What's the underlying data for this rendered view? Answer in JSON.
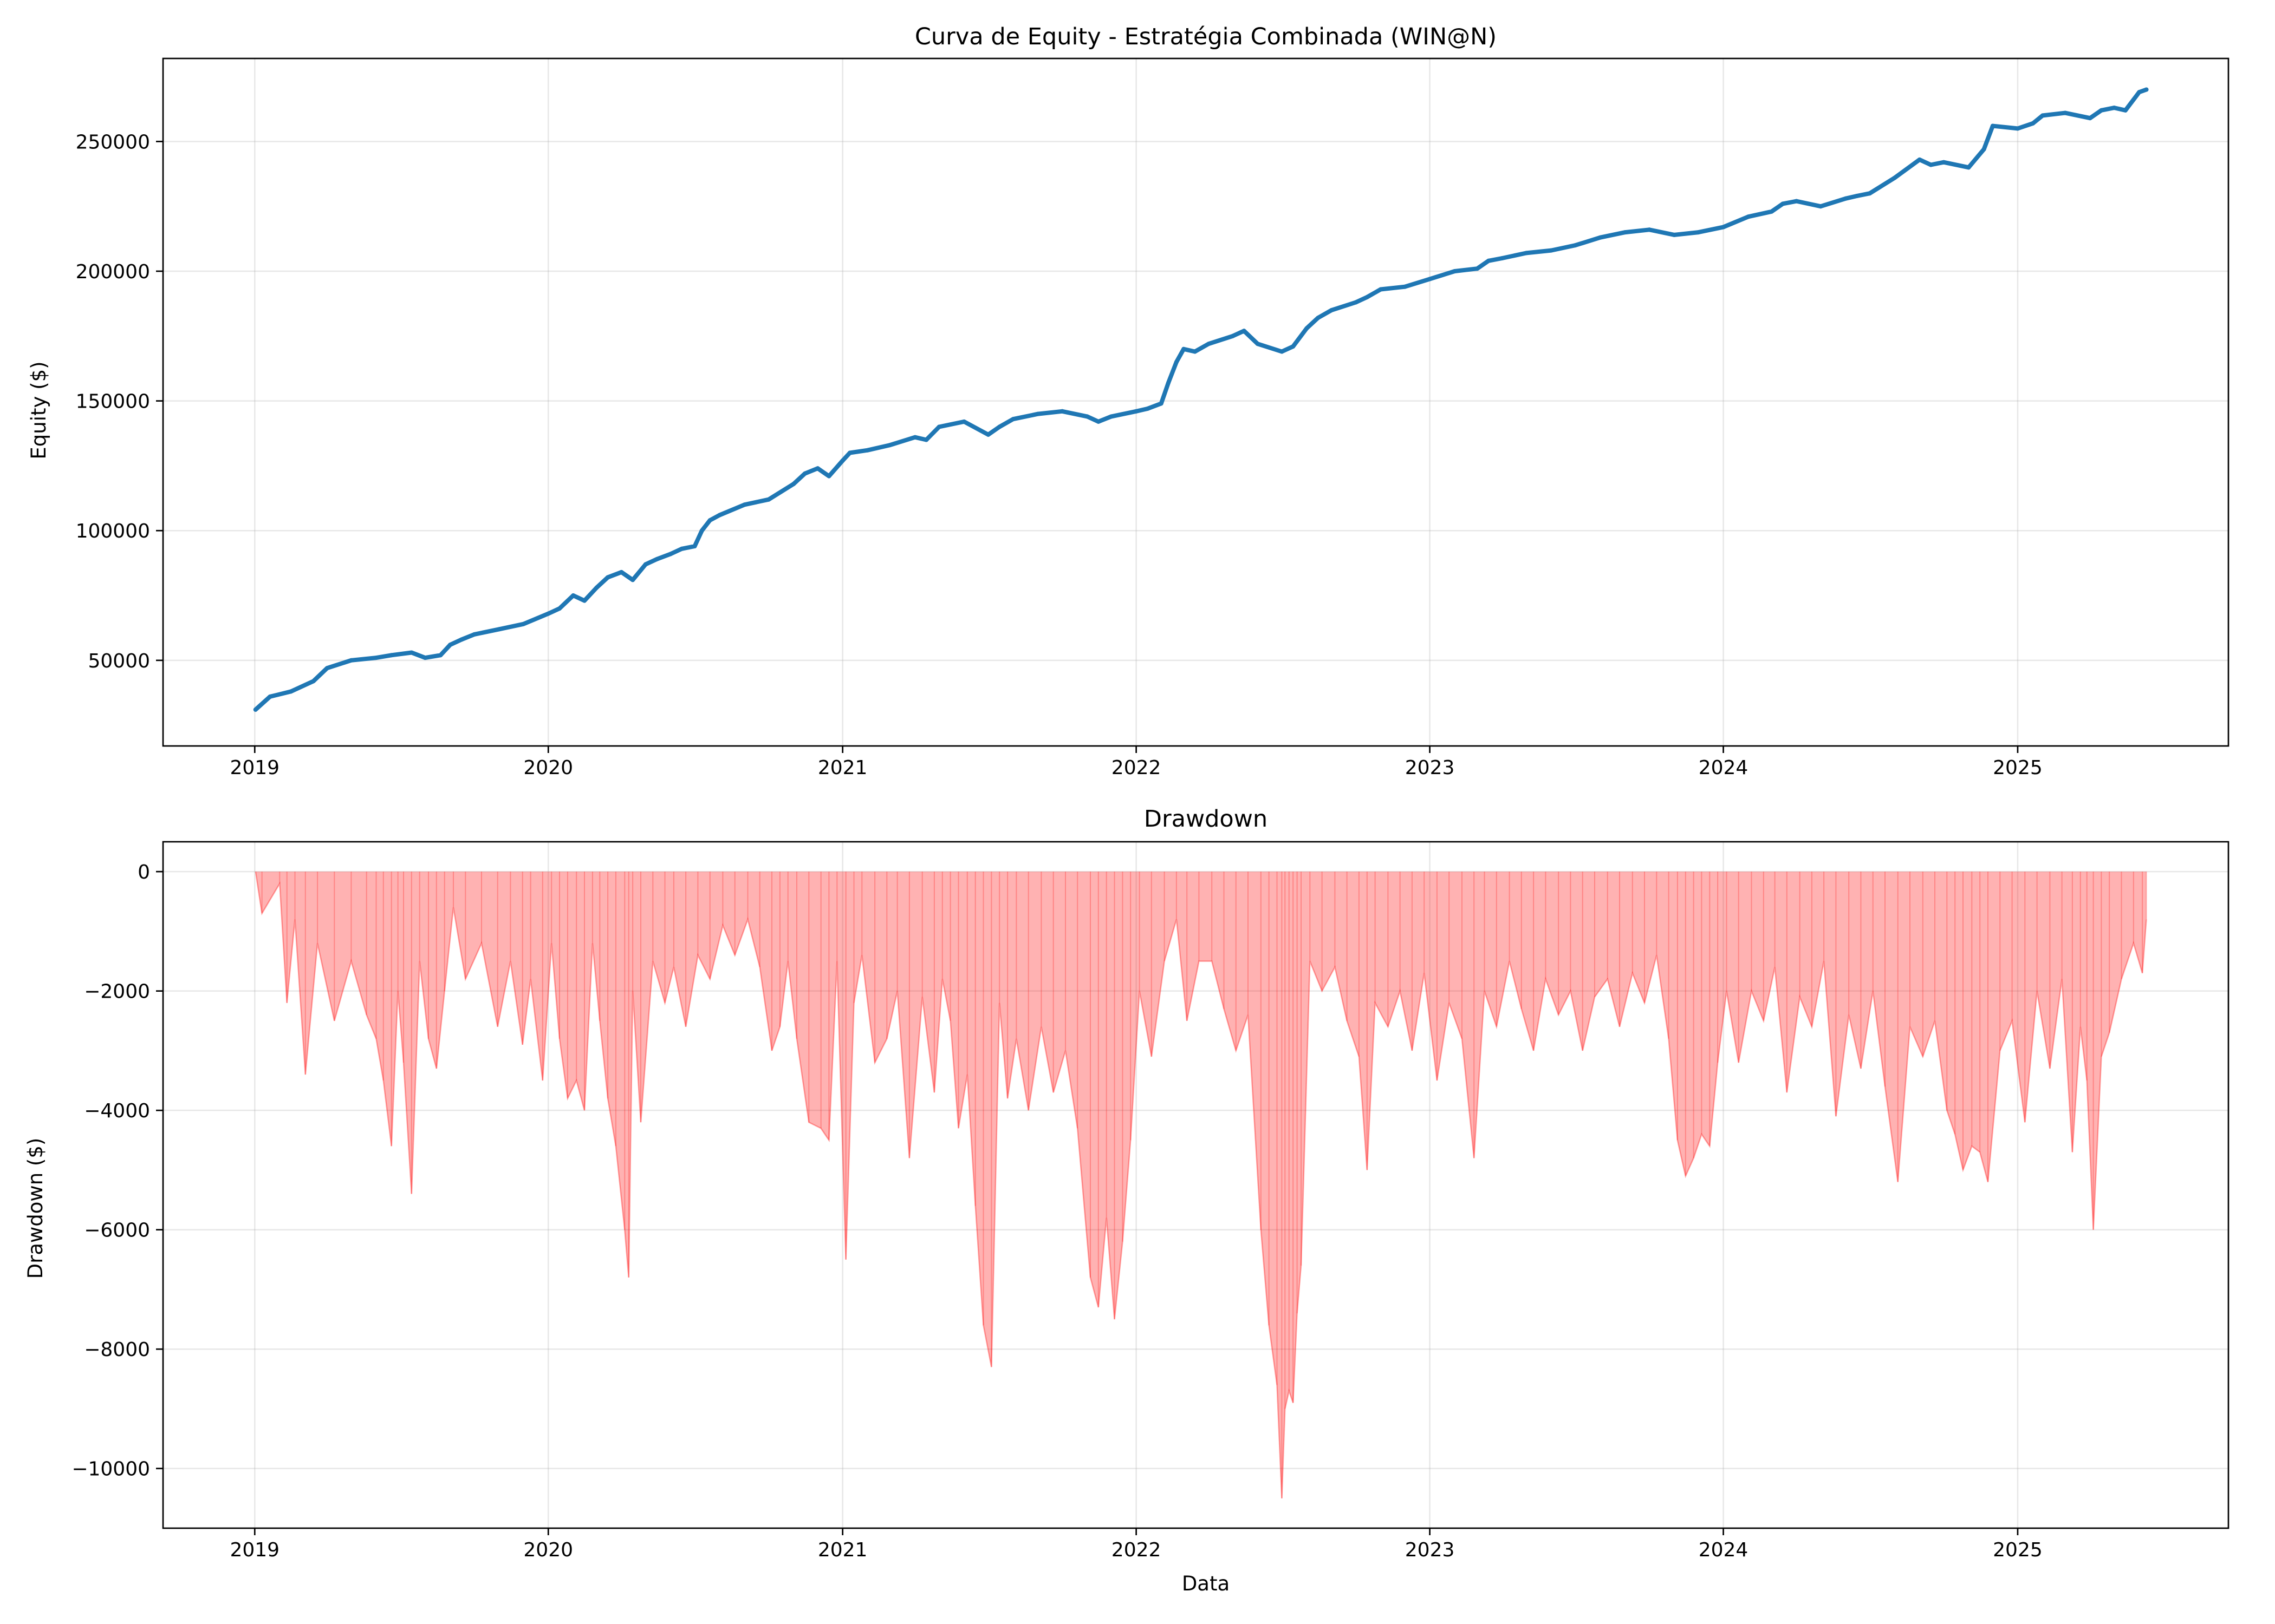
{
  "chart_data": [
    {
      "type": "line",
      "title": "Curva de Equity - Estratégia Combinada (WIN@N)",
      "xlabel": "",
      "ylabel": "Equity ($)",
      "xlim": [
        "2018-09-09",
        "2025-09-20"
      ],
      "ylim": [
        17000,
        282000
      ],
      "x_ticks": [
        "2019",
        "2020",
        "2021",
        "2022",
        "2023",
        "2024",
        "2025"
      ],
      "y_ticks": [
        "50000",
        "100000",
        "150000",
        "200000",
        "250000"
      ],
      "grid": true,
      "series": [
        {
          "color": "#1f77b4",
          "x": [
            "2019-01-02",
            "2019-01-20",
            "2019-02-15",
            "2019-03-15",
            "2019-04-01",
            "2019-05-01",
            "2019-06-01",
            "2019-06-20",
            "2019-07-15",
            "2019-08-01",
            "2019-08-20",
            "2019-09-01",
            "2019-09-15",
            "2019-10-01",
            "2019-11-01",
            "2019-12-01",
            "2020-01-01",
            "2020-01-15",
            "2020-02-01",
            "2020-02-15",
            "2020-03-01",
            "2020-03-15",
            "2020-04-01",
            "2020-04-15",
            "2020-05-01",
            "2020-05-15",
            "2020-06-01",
            "2020-06-15",
            "2020-07-01",
            "2020-07-10",
            "2020-07-20",
            "2020-08-01",
            "2020-09-01",
            "2020-10-01",
            "2020-11-01",
            "2020-11-15",
            "2020-12-01",
            "2020-12-15",
            "2021-01-01",
            "2021-01-10",
            "2021-02-01",
            "2021-03-01",
            "2021-04-01",
            "2021-04-15",
            "2021-05-01",
            "2021-06-01",
            "2021-07-01",
            "2021-07-15",
            "2021-08-01",
            "2021-09-01",
            "2021-10-01",
            "2021-11-01",
            "2021-11-15",
            "2021-12-01",
            "2022-01-01",
            "2022-01-15",
            "2022-02-01",
            "2022-02-10",
            "2022-02-20",
            "2022-03-01",
            "2022-03-15",
            "2022-04-01",
            "2022-05-01",
            "2022-05-15",
            "2022-06-01",
            "2022-07-01",
            "2022-07-15",
            "2022-08-01",
            "2022-08-15",
            "2022-09-01",
            "2022-10-01",
            "2022-10-15",
            "2022-11-01",
            "2022-12-01",
            "2023-01-01",
            "2023-02-01",
            "2023-03-01",
            "2023-03-15",
            "2023-04-01",
            "2023-05-01",
            "2023-06-01",
            "2023-07-01",
            "2023-08-01",
            "2023-09-01",
            "2023-10-01",
            "2023-11-01",
            "2023-12-01",
            "2024-01-01",
            "2024-02-01",
            "2024-03-01",
            "2024-03-15",
            "2024-04-01",
            "2024-05-01",
            "2024-06-01",
            "2024-06-15",
            "2024-07-01",
            "2024-08-01",
            "2024-09-01",
            "2024-09-15",
            "2024-10-01",
            "2024-11-01",
            "2024-11-20",
            "2024-12-01",
            "2025-01-01",
            "2025-01-20",
            "2025-02-01",
            "2025-03-01",
            "2025-04-01",
            "2025-04-15",
            "2025-05-01",
            "2025-05-15",
            "2025-06-01",
            "2025-06-10"
          ],
          "y": [
            31000,
            36000,
            38000,
            42000,
            47000,
            50000,
            51000,
            52000,
            53000,
            51000,
            52000,
            56000,
            58000,
            60000,
            62000,
            64000,
            68000,
            70000,
            75000,
            73000,
            78000,
            82000,
            84000,
            81000,
            87000,
            89000,
            91000,
            93000,
            94000,
            100000,
            104000,
            106000,
            110000,
            112000,
            118000,
            122000,
            124000,
            121000,
            127000,
            130000,
            131000,
            133000,
            136000,
            135000,
            140000,
            142000,
            137000,
            140000,
            143000,
            145000,
            146000,
            144000,
            142000,
            144000,
            146000,
            147000,
            149000,
            157000,
            165000,
            170000,
            169000,
            172000,
            175000,
            177000,
            172000,
            169000,
            171000,
            178000,
            182000,
            185000,
            188000,
            190000,
            193000,
            194000,
            197000,
            200000,
            201000,
            204000,
            205000,
            207000,
            208000,
            210000,
            213000,
            215000,
            216000,
            214000,
            215000,
            217000,
            221000,
            223000,
            226000,
            227000,
            225000,
            228000,
            229000,
            230000,
            236000,
            243000,
            241000,
            242000,
            240000,
            247000,
            256000,
            255000,
            257000,
            260000,
            261000,
            259000,
            262000,
            263000,
            262000,
            269000,
            270000
          ]
        }
      ]
    },
    {
      "type": "area",
      "title": "Drawdown",
      "xlabel": "Data",
      "ylabel": "Drawdown ($)",
      "xlim": [
        "2018-09-09",
        "2025-09-20"
      ],
      "ylim": [
        -11000,
        500
      ],
      "x_ticks": [
        "2019",
        "2020",
        "2021",
        "2022",
        "2023",
        "2024",
        "2025"
      ],
      "y_ticks": [
        "0",
        "−2000",
        "−4000",
        "−6000",
        "−8000",
        "−10000"
      ],
      "grid": true,
      "series": [
        {
          "color": "#ff0000",
          "x": [
            "2019-01-02",
            "2019-01-10",
            "2019-02-01",
            "2019-02-10",
            "2019-02-20",
            "2019-03-05",
            "2019-03-20",
            "2019-04-10",
            "2019-05-01",
            "2019-05-20",
            "2019-06-01",
            "2019-06-10",
            "2019-06-20",
            "2019-06-28",
            "2019-07-05",
            "2019-07-15",
            "2019-07-25",
            "2019-08-05",
            "2019-08-15",
            "2019-08-25",
            "2019-09-05",
            "2019-09-20",
            "2019-10-10",
            "2019-10-30",
            "2019-11-15",
            "2019-11-30",
            "2019-12-10",
            "2019-12-25",
            "2020-01-05",
            "2020-01-15",
            "2020-01-25",
            "2020-02-05",
            "2020-02-15",
            "2020-02-25",
            "2020-03-05",
            "2020-03-15",
            "2020-03-25",
            "2020-04-05",
            "2020-04-10",
            "2020-04-15",
            "2020-04-25",
            "2020-05-10",
            "2020-05-25",
            "2020-06-05",
            "2020-06-20",
            "2020-07-05",
            "2020-07-20",
            "2020-08-05",
            "2020-08-20",
            "2020-09-05",
            "2020-09-20",
            "2020-10-05",
            "2020-10-15",
            "2020-10-25",
            "2020-11-05",
            "2020-11-20",
            "2020-12-05",
            "2020-12-15",
            "2020-12-25",
            "2021-01-05",
            "2021-01-15",
            "2021-01-25",
            "2021-02-10",
            "2021-02-25",
            "2021-03-10",
            "2021-03-25",
            "2021-04-10",
            "2021-04-25",
            "2021-05-05",
            "2021-05-15",
            "2021-05-25",
            "2021-06-05",
            "2021-06-15",
            "2021-06-25",
            "2021-07-05",
            "2021-07-15",
            "2021-07-25",
            "2021-08-05",
            "2021-08-20",
            "2021-09-05",
            "2021-09-20",
            "2021-10-05",
            "2021-10-20",
            "2021-11-05",
            "2021-11-15",
            "2021-11-25",
            "2021-12-05",
            "2021-12-15",
            "2021-12-25",
            "2022-01-05",
            "2022-01-20",
            "2022-02-05",
            "2022-02-20",
            "2022-03-05",
            "2022-03-20",
            "2022-04-05",
            "2022-04-20",
            "2022-05-05",
            "2022-05-20",
            "2022-06-05",
            "2022-06-15",
            "2022-06-25",
            "2022-07-01",
            "2022-07-05",
            "2022-07-10",
            "2022-07-15",
            "2022-07-20",
            "2022-07-25",
            "2022-08-05",
            "2022-08-20",
            "2022-09-05",
            "2022-09-20",
            "2022-10-05",
            "2022-10-15",
            "2022-10-25",
            "2022-11-10",
            "2022-11-25",
            "2022-12-10",
            "2022-12-25",
            "2023-01-10",
            "2023-01-25",
            "2023-02-10",
            "2023-02-25",
            "2023-03-10",
            "2023-03-25",
            "2023-04-10",
            "2023-04-25",
            "2023-05-10",
            "2023-05-25",
            "2023-06-10",
            "2023-06-25",
            "2023-07-10",
            "2023-07-25",
            "2023-08-10",
            "2023-08-25",
            "2023-09-10",
            "2023-09-25",
            "2023-10-10",
            "2023-10-25",
            "2023-11-05",
            "2023-11-15",
            "2023-11-25",
            "2023-12-05",
            "2023-12-15",
            "2023-12-25",
            "2024-01-05",
            "2024-01-20",
            "2024-02-05",
            "2024-02-20",
            "2024-03-05",
            "2024-03-20",
            "2024-04-05",
            "2024-04-20",
            "2024-05-05",
            "2024-05-20",
            "2024-06-05",
            "2024-06-20",
            "2024-07-05",
            "2024-07-20",
            "2024-08-05",
            "2024-08-20",
            "2024-09-05",
            "2024-09-20",
            "2024-10-05",
            "2024-10-15",
            "2024-10-25",
            "2024-11-05",
            "2024-11-15",
            "2024-11-25",
            "2024-12-10",
            "2024-12-25",
            "2025-01-10",
            "2025-01-25",
            "2025-02-10",
            "2025-02-25",
            "2025-03-10",
            "2025-03-20",
            "2025-03-28",
            "2025-04-05",
            "2025-04-15",
            "2025-04-25",
            "2025-05-10",
            "2025-05-25",
            "2025-06-05",
            "2025-06-10"
          ],
          "y": [
            0,
            -700,
            -200,
            -2200,
            -800,
            -3400,
            -1200,
            -2500,
            -1500,
            -2400,
            -2800,
            -3500,
            -4600,
            -2000,
            -3200,
            -5400,
            -1500,
            -2800,
            -3300,
            -2000,
            -600,
            -1800,
            -1200,
            -2600,
            -1500,
            -2900,
            -1800,
            -3500,
            -1200,
            -2800,
            -3800,
            -3500,
            -4000,
            -1200,
            -2500,
            -3800,
            -4600,
            -6000,
            -6800,
            -2000,
            -4200,
            -1500,
            -2200,
            -1600,
            -2600,
            -1400,
            -1800,
            -900,
            -1400,
            -800,
            -1600,
            -3000,
            -2600,
            -1500,
            -2800,
            -4200,
            -4300,
            -4500,
            -1500,
            -6500,
            -2200,
            -1400,
            -3200,
            -2800,
            -2000,
            -4800,
            -2100,
            -3700,
            -1800,
            -2500,
            -4300,
            -3400,
            -5600,
            -7600,
            -8300,
            -2200,
            -3800,
            -2800,
            -4000,
            -2600,
            -3700,
            -3000,
            -4300,
            -6800,
            -7300,
            -5800,
            -7500,
            -6200,
            -4500,
            -2000,
            -3100,
            -1500,
            -800,
            -2500,
            -1500,
            -1500,
            -2300,
            -3000,
            -2400,
            -6000,
            -7600,
            -8600,
            -10500,
            -9000,
            -8700,
            -8900,
            -7400,
            -6600,
            -1500,
            -2000,
            -1600,
            -2500,
            -3100,
            -5000,
            -2200,
            -2600,
            -2000,
            -3000,
            -1700,
            -3500,
            -2200,
            -2800,
            -4800,
            -2000,
            -2600,
            -1500,
            -2300,
            -3000,
            -1800,
            -2400,
            -2000,
            -3000,
            -2100,
            -1800,
            -2600,
            -1700,
            -2200,
            -1400,
            -2800,
            -4500,
            -5100,
            -4800,
            -4400,
            -4600,
            -3200,
            -2000,
            -3200,
            -2000,
            -2500,
            -1600,
            -3700,
            -2100,
            -2600,
            -1500,
            -4100,
            -2400,
            -3300,
            -2000,
            -3600,
            -5200,
            -2600,
            -3100,
            -2500,
            -4000,
            -4400,
            -5000,
            -4600,
            -4700,
            -5200,
            -3000,
            -2500,
            -4200,
            -2000,
            -3300,
            -1800,
            -4700,
            -2600,
            -3500,
            -6000,
            -3100,
            -2700,
            -1800,
            -1200,
            -1700,
            -800
          ]
        }
      ]
    }
  ]
}
